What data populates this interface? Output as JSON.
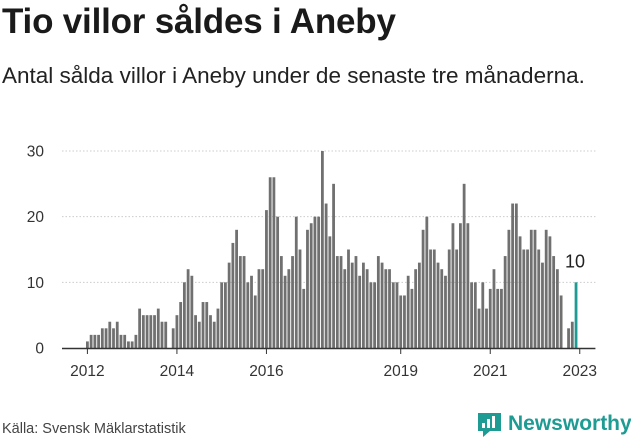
{
  "header": {
    "title": "Tio villor såldes i Aneby",
    "subtitle": "Antal sålda villor i Aneby under de senaste tre månaderna."
  },
  "footer": {
    "source": "Källa: Svensk Mäklarstatistik",
    "brand": "Newsworthy",
    "logo_icon": "newsworthy-logo-icon"
  },
  "colors": {
    "bar": "#707070",
    "highlight": "#1e9b93",
    "gridline": "#cccccc",
    "axis": "#333333"
  },
  "chart_data": {
    "type": "bar",
    "title": "Tio villor såldes i Aneby",
    "subtitle": "Antal sålda villor i Aneby under de senaste tre månaderna.",
    "xlabel": "",
    "ylabel": "",
    "ylim": [
      0,
      30
    ],
    "yticks": [
      0,
      10,
      20,
      30
    ],
    "grid": true,
    "x_start": "2012-01",
    "frequency": "monthly",
    "xtick_labels": [
      {
        "label": "2012",
        "index": 0
      },
      {
        "label": "2014",
        "index": 24
      },
      {
        "label": "2016",
        "index": 48
      },
      {
        "label": "2019",
        "index": 84
      },
      {
        "label": "2021",
        "index": 108
      },
      {
        "label": "2023",
        "index": 132
      }
    ],
    "values": [
      1,
      2,
      2,
      2,
      3,
      3,
      4,
      3,
      4,
      2,
      2,
      1,
      1,
      2,
      6,
      5,
      5,
      5,
      5,
      6,
      4,
      4,
      0,
      3,
      5,
      7,
      10,
      12,
      11,
      5,
      4,
      7,
      7,
      5,
      4,
      6,
      10,
      10,
      13,
      16,
      18,
      14,
      14,
      10,
      11,
      8,
      12,
      12,
      21,
      26,
      26,
      20,
      14,
      11,
      12,
      14,
      20,
      15,
      9,
      18,
      19,
      20,
      20,
      30,
      22,
      17,
      25,
      14,
      14,
      12,
      15,
      13,
      14,
      11,
      13,
      12,
      10,
      10,
      14,
      13,
      12,
      12,
      10,
      10,
      8,
      8,
      11,
      9,
      12,
      13,
      18,
      20,
      15,
      15,
      13,
      12,
      11,
      15,
      19,
      15,
      19,
      25,
      19,
      10,
      10,
      6,
      10,
      6,
      9,
      12,
      9,
      9,
      14,
      18,
      22,
      22,
      17,
      15,
      15,
      18,
      18,
      15,
      13,
      18,
      17,
      14,
      12,
      8,
      0,
      3,
      4,
      10
    ],
    "highlight": {
      "index": 131,
      "label": "10"
    }
  }
}
